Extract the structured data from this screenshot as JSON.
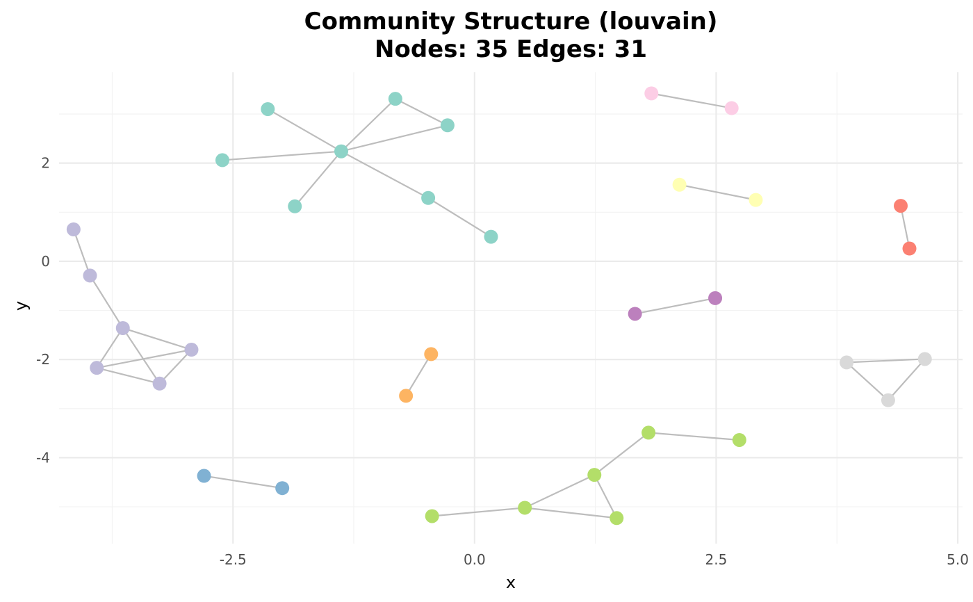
{
  "chart_data": {
    "type": "scatter",
    "subtype": "network",
    "title_line1": "Community Structure (louvain)",
    "title_line2": "Nodes: 35 Edges: 31",
    "xlabel": "x",
    "ylabel": "y",
    "xlim": [
      -4.3,
      5.05
    ],
    "ylim": [
      -5.75,
      3.85
    ],
    "x_ticks": [
      -2.5,
      0.0,
      2.5,
      5.0
    ],
    "x_tick_labels": [
      "-2.5",
      "0.0",
      "2.5",
      "5.0"
    ],
    "y_ticks": [
      2,
      0,
      -2,
      -4
    ],
    "y_tick_labels": [
      "2",
      "0",
      "-2",
      "-4"
    ],
    "x_minor_ticks": [
      -3.75,
      -1.25,
      1.25,
      3.75
    ],
    "y_minor_ticks": [
      3,
      1,
      -1,
      -3,
      -5
    ],
    "grid": true,
    "edge_color": "#bdbdbd",
    "community_colors": {
      "1": "#8dd3c7",
      "2": "#bebada",
      "3": "#fccde5",
      "4": "#ffffb3",
      "5": "#fb8072",
      "6": "#bc80bd",
      "7": "#fdb462",
      "8": "#d9d9d9",
      "9": "#b3de69",
      "10": "#80b1d3"
    },
    "nodes": [
      {
        "id": "n1",
        "x": -1.38,
        "y": 2.24,
        "community": 1
      },
      {
        "id": "n2",
        "x": -2.14,
        "y": 3.1,
        "community": 1
      },
      {
        "id": "n3",
        "x": -2.61,
        "y": 2.06,
        "community": 1
      },
      {
        "id": "n4",
        "x": -1.86,
        "y": 1.12,
        "community": 1
      },
      {
        "id": "n5",
        "x": -0.82,
        "y": 3.31,
        "community": 1
      },
      {
        "id": "n6",
        "x": -0.28,
        "y": 2.77,
        "community": 1
      },
      {
        "id": "n7",
        "x": -0.48,
        "y": 1.29,
        "community": 1
      },
      {
        "id": "n8",
        "x": 0.17,
        "y": 0.5,
        "community": 1
      },
      {
        "id": "n9",
        "x": -4.15,
        "y": 0.65,
        "community": 2
      },
      {
        "id": "n10",
        "x": -3.98,
        "y": -0.29,
        "community": 2
      },
      {
        "id": "n11",
        "x": -3.64,
        "y": -1.36,
        "community": 2
      },
      {
        "id": "n12",
        "x": -2.93,
        "y": -1.8,
        "community": 2
      },
      {
        "id": "n13",
        "x": -3.91,
        "y": -2.17,
        "community": 2
      },
      {
        "id": "n14",
        "x": -3.26,
        "y": -2.49,
        "community": 2
      },
      {
        "id": "n15",
        "x": 1.83,
        "y": 3.42,
        "community": 3
      },
      {
        "id": "n16",
        "x": 2.66,
        "y": 3.12,
        "community": 3
      },
      {
        "id": "n17",
        "x": 2.12,
        "y": 1.56,
        "community": 4
      },
      {
        "id": "n18",
        "x": 2.91,
        "y": 1.25,
        "community": 4
      },
      {
        "id": "n19",
        "x": 4.41,
        "y": 1.13,
        "community": 5
      },
      {
        "id": "n20",
        "x": 4.5,
        "y": 0.26,
        "community": 5
      },
      {
        "id": "n21",
        "x": 1.66,
        "y": -1.07,
        "community": 6
      },
      {
        "id": "n22",
        "x": 2.49,
        "y": -0.75,
        "community": 6
      },
      {
        "id": "n23",
        "x": -0.45,
        "y": -1.89,
        "community": 7
      },
      {
        "id": "n24",
        "x": -0.71,
        "y": -2.74,
        "community": 7
      },
      {
        "id": "n25",
        "x": 3.85,
        "y": -2.06,
        "community": 8
      },
      {
        "id": "n26",
        "x": 4.66,
        "y": -1.99,
        "community": 8
      },
      {
        "id": "n27",
        "x": 4.28,
        "y": -2.83,
        "community": 8
      },
      {
        "id": "n28",
        "x": 1.8,
        "y": -3.49,
        "community": 9
      },
      {
        "id": "n29",
        "x": 2.74,
        "y": -3.64,
        "community": 9
      },
      {
        "id": "n30",
        "x": 1.24,
        "y": -4.35,
        "community": 9
      },
      {
        "id": "n31",
        "x": 1.47,
        "y": -5.23,
        "community": 9
      },
      {
        "id": "n32",
        "x": 0.52,
        "y": -5.02,
        "community": 9
      },
      {
        "id": "n33",
        "x": -0.44,
        "y": -5.19,
        "community": 9
      },
      {
        "id": "n34",
        "x": -2.8,
        "y": -4.37,
        "community": 10
      },
      {
        "id": "n35",
        "x": -1.99,
        "y": -4.62,
        "community": 10
      }
    ],
    "edges": [
      [
        "n1",
        "n2"
      ],
      [
        "n1",
        "n3"
      ],
      [
        "n1",
        "n4"
      ],
      [
        "n1",
        "n5"
      ],
      [
        "n1",
        "n6"
      ],
      [
        "n1",
        "n7"
      ],
      [
        "n5",
        "n6"
      ],
      [
        "n7",
        "n8"
      ],
      [
        "n9",
        "n10"
      ],
      [
        "n10",
        "n11"
      ],
      [
        "n11",
        "n12"
      ],
      [
        "n11",
        "n13"
      ],
      [
        "n11",
        "n14"
      ],
      [
        "n12",
        "n13"
      ],
      [
        "n12",
        "n14"
      ],
      [
        "n13",
        "n14"
      ],
      [
        "n15",
        "n16"
      ],
      [
        "n17",
        "n18"
      ],
      [
        "n19",
        "n20"
      ],
      [
        "n21",
        "n22"
      ],
      [
        "n23",
        "n24"
      ],
      [
        "n25",
        "n26"
      ],
      [
        "n25",
        "n27"
      ],
      [
        "n26",
        "n27"
      ],
      [
        "n28",
        "n29"
      ],
      [
        "n28",
        "n30"
      ],
      [
        "n30",
        "n31"
      ],
      [
        "n30",
        "n32"
      ],
      [
        "n31",
        "n32"
      ],
      [
        "n32",
        "n33"
      ],
      [
        "n34",
        "n35"
      ]
    ]
  }
}
